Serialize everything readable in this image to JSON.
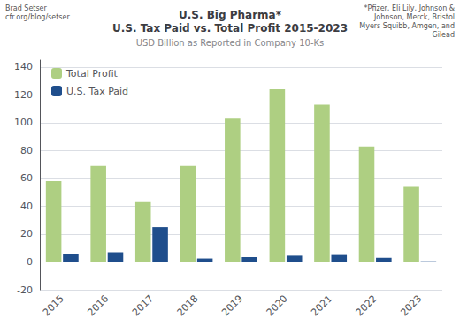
{
  "chart_data": {
    "type": "bar",
    "title": "U.S. Big Pharma*\nU.S. Tax Paid vs. Total Profit 2015-2023",
    "subtitle": "USD Billion as Reported in Company 10-Ks",
    "annotations": [
      "Brad Setser\ncfr.org/blog/setser",
      "*Pfizer, Eli Lily, Johnson &\nJohnson, Merck, Bristol\nMyers Squibb, Amgen, and\nGilead"
    ],
    "categories": [
      "2015",
      "2016",
      "2017",
      "2018",
      "2019",
      "2020",
      "2021",
      "2022",
      "2023"
    ],
    "series": [
      {
        "name": "Total Profit",
        "color": "#AECF82",
        "values": [
          58,
          69,
          43,
          69,
          103,
          124,
          113,
          83,
          54
        ]
      },
      {
        "name": "U.S. Tax Paid",
        "color": "#1F4E8C",
        "values": [
          6,
          7,
          25,
          2.5,
          3.5,
          4.5,
          5,
          3,
          0.5
        ]
      }
    ],
    "ylim": [
      -20,
      145
    ],
    "yticks": [
      -20,
      0,
      20,
      40,
      60,
      80,
      100,
      120,
      140
    ],
    "grid": true,
    "legend": "upper left"
  }
}
